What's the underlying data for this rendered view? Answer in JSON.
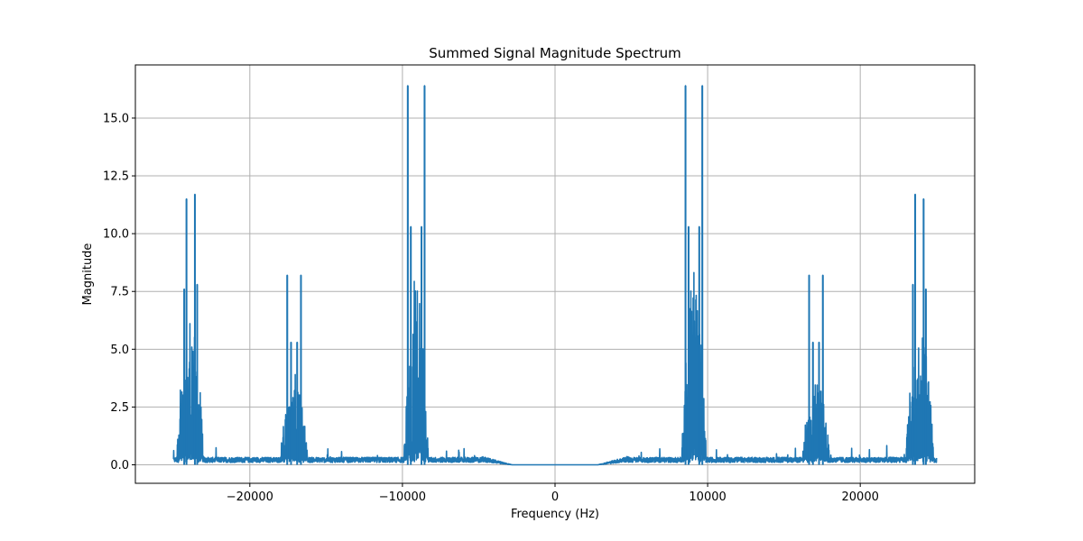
{
  "chart_data": {
    "type": "line",
    "title": "Summed Signal Magnitude Spectrum",
    "xlabel": "Frequency (Hz)",
    "ylabel": "Magnitude",
    "xlim": [
      -27500,
      27500
    ],
    "ylim": [
      -0.8,
      17.3
    ],
    "xticks": [
      -20000,
      -10000,
      0,
      10000,
      20000
    ],
    "xtick_labels": [
      "−20000",
      "−10000",
      "0",
      "10000",
      "20000"
    ],
    "yticks": [
      0.0,
      2.5,
      5.0,
      7.5,
      10.0,
      12.5,
      15.0
    ],
    "ytick_labels": [
      "0.0",
      "2.5",
      "5.0",
      "7.5",
      "10.0",
      "12.5",
      "15.0"
    ],
    "grid": true,
    "line_color": "#1f77b4",
    "frequency_range": [
      -25000,
      25000
    ],
    "baseline_level": 0.25,
    "peaks": [
      {
        "freq": -24150,
        "magnitude": 11.5
      },
      {
        "freq": -23600,
        "magnitude": 11.7
      },
      {
        "freq": -24300,
        "magnitude": 7.6
      },
      {
        "freq": -23450,
        "magnitude": 7.8
      },
      {
        "freq": -17550,
        "magnitude": 8.2
      },
      {
        "freq": -16650,
        "magnitude": 8.2
      },
      {
        "freq": -17300,
        "magnitude": 5.3
      },
      {
        "freq": -16900,
        "magnitude": 5.3
      },
      {
        "freq": -9650,
        "magnitude": 16.4
      },
      {
        "freq": -8550,
        "magnitude": 16.4
      },
      {
        "freq": -9450,
        "magnitude": 10.3
      },
      {
        "freq": -8750,
        "magnitude": 10.3
      },
      {
        "freq": 8550,
        "magnitude": 16.4
      },
      {
        "freq": 9650,
        "magnitude": 16.4
      },
      {
        "freq": 8750,
        "magnitude": 10.3
      },
      {
        "freq": 9450,
        "magnitude": 10.3
      },
      {
        "freq": 16650,
        "magnitude": 8.2
      },
      {
        "freq": 17550,
        "magnitude": 8.2
      },
      {
        "freq": 16900,
        "magnitude": 5.3
      },
      {
        "freq": 17300,
        "magnitude": 5.3
      },
      {
        "freq": 23600,
        "magnitude": 11.7
      },
      {
        "freq": 24150,
        "magnitude": 11.5
      },
      {
        "freq": 23450,
        "magnitude": 7.8
      },
      {
        "freq": 24300,
        "magnitude": 7.6
      }
    ],
    "clusters": [
      {
        "center": -23900,
        "half_width": 900,
        "envelope": 7.0
      },
      {
        "center": -17100,
        "half_width": 900,
        "envelope": 4.3
      },
      {
        "center": -9100,
        "half_width": 800,
        "envelope": 9.0
      },
      {
        "center": 9100,
        "half_width": 800,
        "envelope": 9.0
      },
      {
        "center": 17100,
        "half_width": 900,
        "envelope": 4.3
      },
      {
        "center": 23900,
        "half_width": 900,
        "envelope": 7.0
      }
    ]
  }
}
